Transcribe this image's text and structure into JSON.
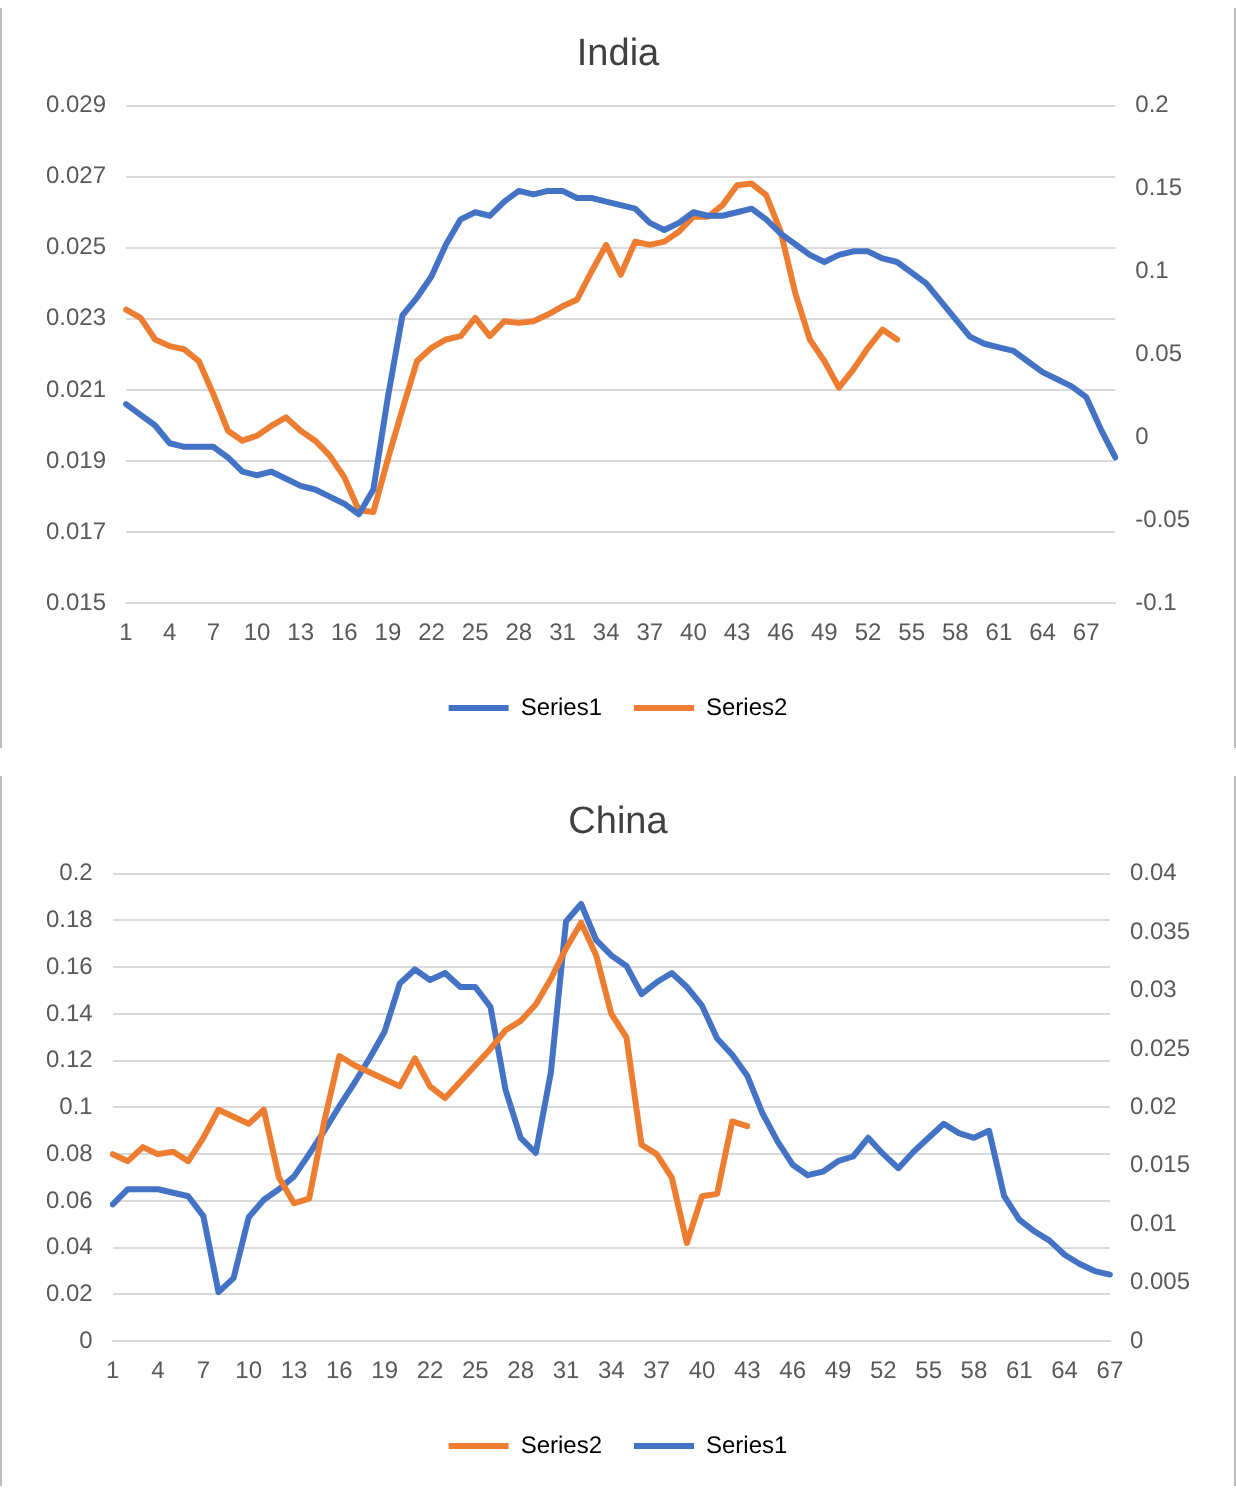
{
  "chart_data": [
    {
      "type": "line",
      "title": "India",
      "categories": [
        "1",
        null,
        null,
        "4",
        null,
        null,
        "7",
        null,
        null,
        "10",
        null,
        null,
        "13",
        null,
        null,
        "16",
        null,
        null,
        "19",
        null,
        null,
        "22",
        null,
        null,
        "25",
        null,
        null,
        "28",
        null,
        null,
        "31",
        null,
        null,
        "34",
        null,
        null,
        "37",
        null,
        null,
        "40",
        null,
        null,
        "43",
        null,
        null,
        "46",
        null,
        null,
        "49",
        null,
        null,
        "52",
        null,
        null,
        "55",
        null,
        null,
        "58",
        null,
        null,
        "61",
        null,
        null,
        "64",
        null,
        null,
        "67",
        null,
        null
      ],
      "series": [
        {
          "name": "Series1",
          "color": "#4472c4",
          "values": [
            0.0206,
            0.0203,
            0.02,
            0.0195,
            0.0194,
            0.0194,
            0.0194,
            0.0191,
            0.0187,
            0.0186,
            0.0187,
            0.0185,
            0.0183,
            0.0182,
            0.018,
            0.0178,
            0.0175,
            0.0182,
            0.0208,
            0.0231,
            0.0236,
            0.0242,
            0.0251,
            0.0258,
            0.026,
            0.0259,
            0.0263,
            0.0266,
            0.0265,
            0.0266,
            0.0266,
            0.0264,
            0.0264,
            0.0263,
            0.0262,
            0.0261,
            0.0257,
            0.0255,
            0.0257,
            0.026,
            0.0259,
            0.0259,
            0.026,
            0.0261,
            0.0258,
            0.0254,
            0.0251,
            0.0248,
            0.0246,
            0.0248,
            0.0249,
            0.0249,
            0.0247,
            0.0246,
            0.0243,
            0.024,
            0.0235,
            0.023,
            0.0225,
            0.0223,
            0.0222,
            0.0221,
            0.0218,
            0.0215,
            0.0213,
            0.0211,
            0.0208,
            0.0199,
            0.0191
          ]
        },
        {
          "name": "Series2",
          "color": "#ed7d31",
          "axis": "y2",
          "values": [
            0.077,
            0.072,
            0.059,
            0.055,
            0.053,
            0.046,
            0.026,
            0.004,
            -0.002,
            0.001,
            0.007,
            0.012,
            0.004,
            -0.002,
            -0.011,
            -0.024,
            -0.044,
            -0.045,
            -0.013,
            0.017,
            0.046,
            0.054,
            0.059,
            0.061,
            0.072,
            0.061,
            0.07,
            0.069,
            0.07,
            0.074,
            0.079,
            0.083,
            0.1,
            0.116,
            0.098,
            0.118,
            0.116,
            0.118,
            0.124,
            0.133,
            0.133,
            0.14,
            0.152,
            0.153,
            0.146,
            0.124,
            0.087,
            0.059,
            0.046,
            0.03,
            0.041,
            0.054,
            0.065,
            0.059,
            null,
            null,
            null,
            null,
            null,
            null,
            null,
            null,
            null,
            null,
            null,
            null,
            null,
            null,
            null
          ]
        }
      ],
      "ylim": [
        0.015,
        0.029
      ],
      "yticks": [
        0.015,
        0.017,
        0.019,
        0.021,
        0.023,
        0.025,
        0.027,
        0.029
      ],
      "y2lim": [
        -0.1,
        0.2
      ],
      "y2ticks": [
        -0.1,
        -0.05,
        0,
        0.05,
        0.1,
        0.15,
        0.2
      ],
      "grid": "y",
      "legend": "bottom",
      "marker": "none",
      "line_style": "solid"
    },
    {
      "type": "line",
      "title": "China",
      "categories": [
        "1",
        null,
        null,
        "4",
        null,
        null,
        "7",
        null,
        null,
        "10",
        null,
        null,
        "13",
        null,
        null,
        "16",
        null,
        null,
        "19",
        null,
        null,
        "22",
        null,
        null,
        "25",
        null,
        null,
        "28",
        null,
        null,
        "31",
        null,
        null,
        "34",
        null,
        null,
        "37",
        null,
        null,
        "40",
        null,
        null,
        "43",
        null,
        null,
        "46",
        null,
        null,
        "49",
        null,
        null,
        "52",
        null,
        null,
        "55",
        null,
        null,
        "58",
        null,
        null,
        "61",
        null,
        null,
        "64",
        null,
        null,
        "67"
      ],
      "series": [
        {
          "name": "Series2",
          "color": "#ed7d31",
          "values": [
            0.08,
            0.077,
            0.083,
            0.08,
            0.081,
            0.077,
            0.087,
            0.099,
            0.096,
            0.093,
            0.099,
            0.07,
            0.059,
            0.061,
            0.094,
            0.122,
            0.118,
            0.115,
            0.112,
            0.109,
            0.121,
            0.109,
            0.104,
            0.111,
            0.118,
            0.125,
            0.133,
            0.137,
            0.144,
            0.155,
            0.168,
            0.179,
            0.165,
            0.14,
            0.13,
            0.084,
            0.08,
            0.07,
            0.042,
            0.062,
            0.063,
            0.094,
            0.092,
            null,
            null,
            null,
            null,
            null,
            null,
            null,
            null,
            null,
            null,
            null,
            null,
            null,
            null,
            null,
            null,
            null,
            null,
            null,
            null,
            null,
            null,
            null,
            null
          ]
        },
        {
          "name": "Series1",
          "color": "#4472c4",
          "axis": "y2",
          "values": [
            0.0117,
            0.013,
            0.013,
            0.013,
            0.0127,
            0.0124,
            0.0107,
            0.0042,
            0.0054,
            0.0106,
            0.0121,
            0.013,
            0.0141,
            0.016,
            0.018,
            0.0201,
            0.0221,
            0.0242,
            0.0265,
            0.0306,
            0.0318,
            0.0309,
            0.0315,
            0.0303,
            0.0303,
            0.0286,
            0.0215,
            0.0174,
            0.0161,
            0.023,
            0.0359,
            0.0374,
            0.0343,
            0.033,
            0.0321,
            0.0297,
            0.0307,
            0.0315,
            0.0303,
            0.0287,
            0.0259,
            0.0245,
            0.0227,
            0.0195,
            0.0171,
            0.0151,
            0.0142,
            0.0145,
            0.0154,
            0.0158,
            0.0174,
            0.016,
            0.0148,
            0.0162,
            0.0174,
            0.0186,
            0.0178,
            0.0174,
            0.018,
            0.0124,
            0.0104,
            0.0094,
            0.0086,
            0.0074,
            0.0066,
            0.006,
            0.0057
          ]
        }
      ],
      "ylim": [
        0,
        0.2
      ],
      "yticks": [
        0,
        0.02,
        0.04,
        0.06,
        0.08,
        0.1,
        0.12,
        0.14,
        0.16,
        0.18,
        0.2
      ],
      "y2lim": [
        0,
        0.04
      ],
      "y2ticks": [
        0,
        0.005,
        0.01,
        0.015,
        0.02,
        0.025,
        0.03,
        0.035,
        0.04
      ],
      "grid": "y",
      "legend": "bottom",
      "marker": "none",
      "line_style": "solid"
    }
  ]
}
